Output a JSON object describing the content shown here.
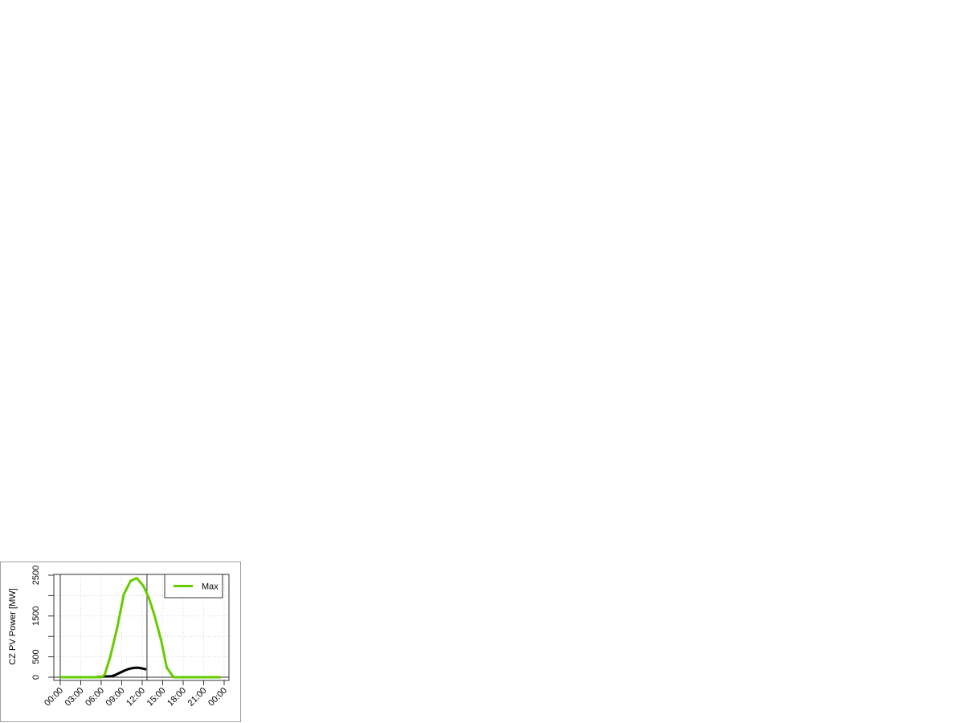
{
  "chart_data": {
    "type": "line",
    "title": "",
    "xlabel": "",
    "ylabel": "CZ PV Power [MW]",
    "xlim_hours": [
      0,
      24
    ],
    "ylim": [
      0,
      2500
    ],
    "x_tick_labels": [
      "00:00",
      "03:00",
      "06:00",
      "09:00",
      "12:00",
      "15:00",
      "18:00",
      "21:00",
      "00:00"
    ],
    "y_ticks": [
      0,
      500,
      1000,
      1500,
      2000,
      2500
    ],
    "y_tick_labels": [
      "0",
      "500",
      "",
      "1500",
      "",
      "2500"
    ],
    "grid": true,
    "vertical_markers_hours": [
      0,
      12.7
    ],
    "legend": {
      "position": "top-right",
      "entries": [
        {
          "name": "Max",
          "color": "#66cc00"
        }
      ]
    },
    "series": [
      {
        "name": "Max",
        "color": "#66cc00",
        "x_hours": [
          0,
          1,
          2,
          3,
          4,
          5,
          6,
          6.5,
          7.3,
          8.35,
          9.3,
          10.3,
          11.2,
          12.2,
          13,
          13.8,
          14.8,
          15.6,
          16.6,
          18,
          20,
          22,
          23.5
        ],
        "values": [
          0,
          0,
          0,
          0,
          0,
          0,
          0,
          60,
          490,
          1220,
          2030,
          2360,
          2430,
          2230,
          1935,
          1515,
          885,
          235,
          0,
          0,
          0,
          0,
          0
        ]
      },
      {
        "color": "#000000",
        "x_hours": [
          0,
          1,
          2,
          3,
          4,
          5,
          6,
          6.5,
          7,
          7.5,
          8,
          8.5,
          9,
          9.5,
          10,
          10.5,
          11,
          11.5,
          12,
          12.6
        ],
        "values": [
          0,
          0,
          0,
          0,
          0,
          0,
          10,
          20,
          20,
          25,
          50,
          90,
          130,
          170,
          200,
          220,
          230,
          230,
          215,
          190
        ]
      }
    ]
  }
}
